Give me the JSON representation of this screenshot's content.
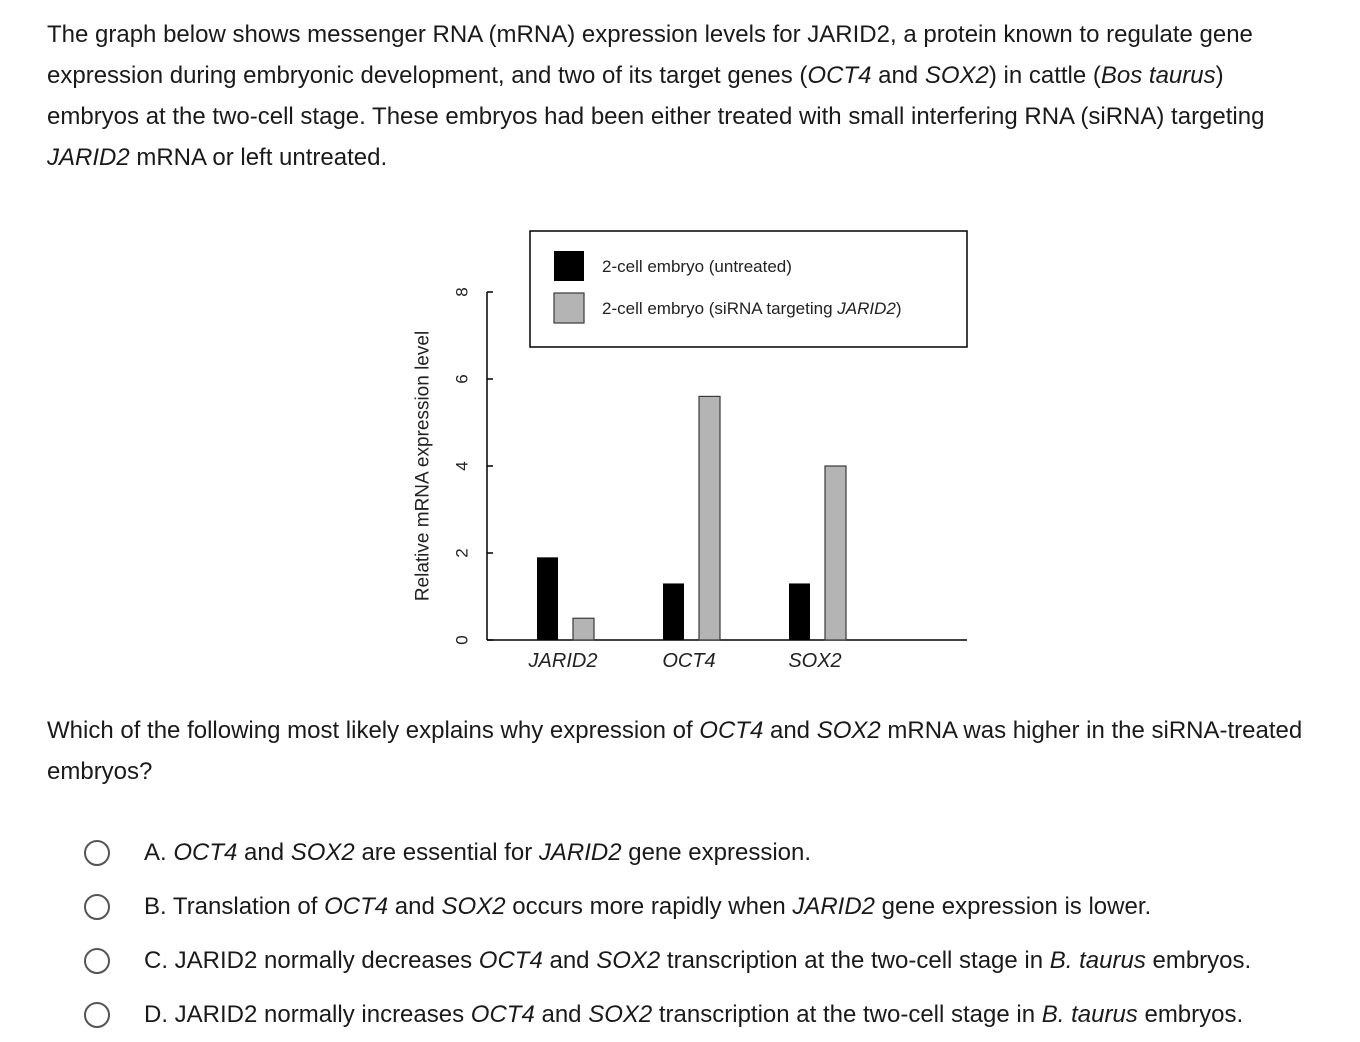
{
  "intro": {
    "p1": "The graph below shows messenger RNA (mRNA) expression levels for JARID2, a protein known to regulate gene expression during embryonic development, and two of its target genes (",
    "g1": "OCT4",
    "p2": " and ",
    "g2": "SOX2",
    "p3": ") in cattle (",
    "species": "Bos taurus",
    "p4": ") embryos at the two-cell stage.  These embryos had been either treated with small interfering RNA (siRNA) targeting ",
    "g3": "JARID2",
    "p5": " mRNA or left untreated."
  },
  "chart_data": {
    "type": "bar",
    "ylabel": "Relative mRNA expression level",
    "xlabel": "",
    "ylim": [
      0,
      8
    ],
    "yticks": [
      0,
      2,
      4,
      6,
      8
    ],
    "categories": [
      "JARID2",
      "OCT4",
      "SOX2"
    ],
    "legend_position": "top-right",
    "series": [
      {
        "name": "2-cell embryo (untreated)",
        "legend_prefix": "2-cell embryo (untreated)",
        "legend_italic": "",
        "legend_suffix": "",
        "color": "#000000",
        "values": [
          1.9,
          1.3,
          1.3
        ]
      },
      {
        "name": "2-cell embryo (siRNA targeting JARID2)",
        "legend_prefix": "2-cell embryo (siRNA targeting ",
        "legend_italic": "JARID2",
        "legend_suffix": ")",
        "color": "#b4b4b4",
        "values": [
          0.5,
          5.6,
          4.0
        ]
      }
    ]
  },
  "question": {
    "p1": "Which of the following most likely explains why expression of ",
    "g1": "OCT4",
    "p2": " and ",
    "g2": "SOX2",
    "p3": " mRNA was higher in the siRNA-treated embryos?"
  },
  "options": [
    {
      "letter": "A.",
      "segments": [
        {
          "t": "OCT4",
          "i": true
        },
        {
          "t": " and ",
          "i": false
        },
        {
          "t": "SOX2",
          "i": true
        },
        {
          "t": " are essential for ",
          "i": false
        },
        {
          "t": "JARID2",
          "i": true
        },
        {
          "t": " gene expression.",
          "i": false
        }
      ]
    },
    {
      "letter": "B.",
      "segments": [
        {
          "t": "Translation of ",
          "i": false
        },
        {
          "t": "OCT4",
          "i": true
        },
        {
          "t": " and ",
          "i": false
        },
        {
          "t": "SOX2",
          "i": true
        },
        {
          "t": " occurs more rapidly when ",
          "i": false
        },
        {
          "t": "JARID2",
          "i": true
        },
        {
          "t": " gene expression is lower.",
          "i": false
        }
      ]
    },
    {
      "letter": "C.",
      "segments": [
        {
          "t": "JARID2 normally decreases ",
          "i": false
        },
        {
          "t": "OCT4",
          "i": true
        },
        {
          "t": " and ",
          "i": false
        },
        {
          "t": "SOX2",
          "i": true
        },
        {
          "t": " transcription at the two-cell stage in ",
          "i": false
        },
        {
          "t": "B. taurus",
          "i": true
        },
        {
          "t": " embryos.",
          "i": false
        }
      ]
    },
    {
      "letter": "D.",
      "segments": [
        {
          "t": "JARID2 normally increases ",
          "i": false
        },
        {
          "t": "OCT4",
          "i": true
        },
        {
          "t": " and ",
          "i": false
        },
        {
          "t": "SOX2",
          "i": true
        },
        {
          "t": " transcription at the two-cell stage in ",
          "i": false
        },
        {
          "t": "B. taurus",
          "i": true
        },
        {
          "t": " embryos.",
          "i": false
        }
      ]
    }
  ]
}
